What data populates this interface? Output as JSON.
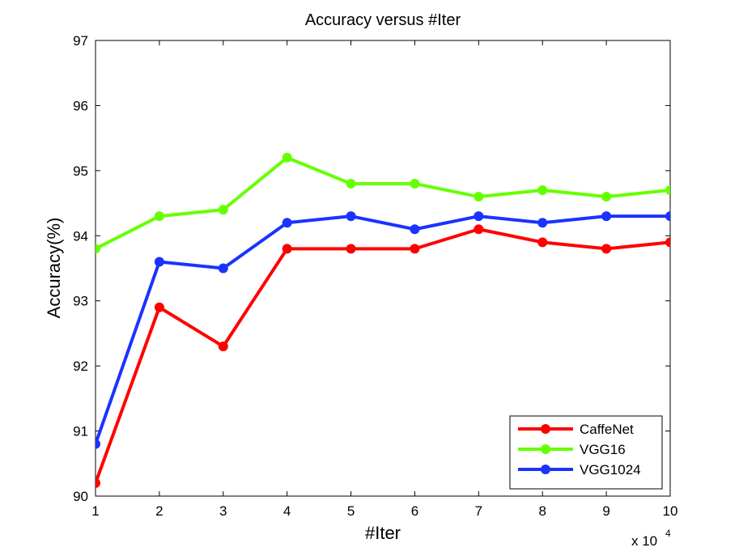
{
  "chart_data": {
    "type": "line",
    "title": "Accuracy versus #Iter",
    "xlabel": "#Iter",
    "ylabel": "Accuracy(%)",
    "x_multiplier_label": "x 10",
    "x_multiplier_exponent": "4",
    "xlim": [
      1,
      10
    ],
    "ylim": [
      90,
      97
    ],
    "x": [
      1,
      2,
      3,
      4,
      5,
      6,
      7,
      8,
      9,
      10
    ],
    "xticks": [
      "1",
      "2",
      "3",
      "4",
      "5",
      "6",
      "7",
      "8",
      "9",
      "10"
    ],
    "yticks": [
      "90",
      "91",
      "92",
      "93",
      "94",
      "95",
      "96",
      "97"
    ],
    "ytick_values": [
      90,
      91,
      92,
      93,
      94,
      95,
      96,
      97
    ],
    "grid": false,
    "legend_position": "bottom-right",
    "series": [
      {
        "name": "CaffeNet",
        "color": "#ff0000",
        "values": [
          90.2,
          92.9,
          92.3,
          93.8,
          93.8,
          93.8,
          94.1,
          93.9,
          93.8,
          93.9
        ]
      },
      {
        "name": "VGG16",
        "color": "#66ff00",
        "values": [
          93.8,
          94.3,
          94.4,
          95.2,
          94.8,
          94.8,
          94.6,
          94.7,
          94.6,
          94.7
        ]
      },
      {
        "name": "VGG1024",
        "color": "#1a33ff",
        "values": [
          90.8,
          93.6,
          93.5,
          94.2,
          94.3,
          94.1,
          94.3,
          94.2,
          94.3,
          94.3
        ]
      }
    ]
  }
}
